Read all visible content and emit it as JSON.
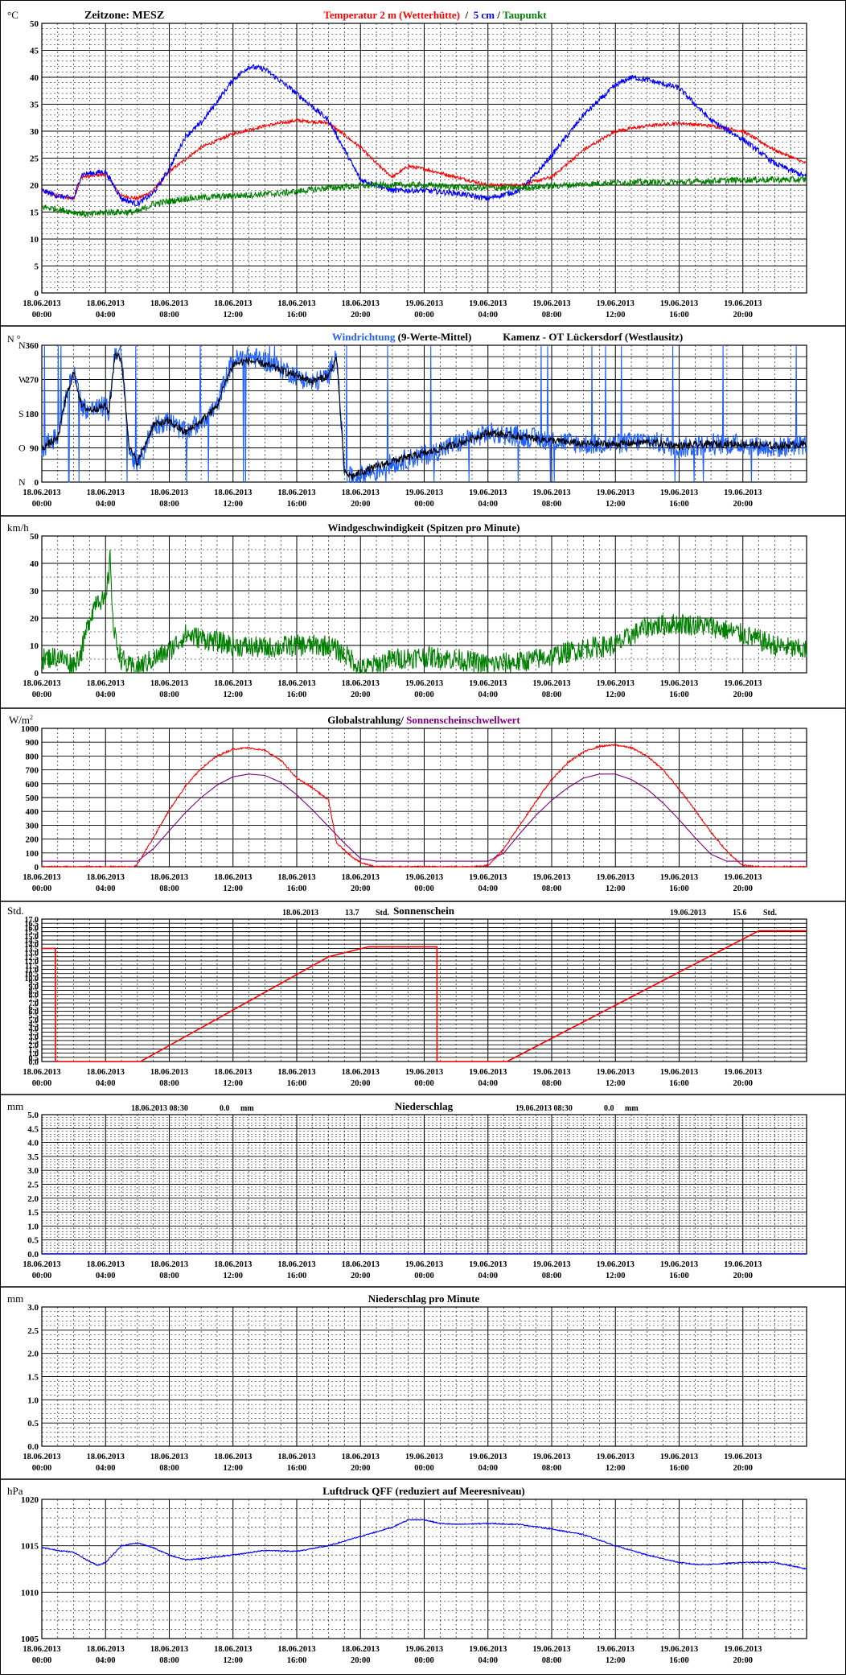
{
  "colors": {
    "red": "#ff0000",
    "blue": "#0000ff",
    "lightblue": "#2060ff",
    "green": "#008000",
    "black": "#000000",
    "purple": "#800080"
  },
  "x_ticks": [
    {
      "date": "18.06.2013",
      "time": "00:00"
    },
    {
      "date": "18.06.2013",
      "time": "04:00"
    },
    {
      "date": "18.06.2013",
      "time": "08:00"
    },
    {
      "date": "18.06.2013",
      "time": "12:00"
    },
    {
      "date": "18.06.2013",
      "time": "16:00"
    },
    {
      "date": "18.06.2013",
      "time": "20:00"
    },
    {
      "date": "19.06.2013",
      "time": "00:00"
    },
    {
      "date": "19.06.2013",
      "time": "04:00"
    },
    {
      "date": "19.06.2013",
      "time": "08:00"
    },
    {
      "date": "19.06.2013",
      "time": "12:00"
    },
    {
      "date": "19.06.2013",
      "time": "16:00"
    },
    {
      "date": "19.06.2013",
      "time": "20:00"
    }
  ],
  "chart_data": [
    {
      "id": "temp",
      "type": "line",
      "unit": "°C",
      "header_left": "Zeitzone: MESZ",
      "title_parts": [
        {
          "text": "Temperatur 2 m (Wetterhütte)",
          "color": "red"
        },
        {
          "text": "  /  ",
          "color": "black"
        },
        {
          "text": "5 cm",
          "color": "blue"
        },
        {
          "text": " / ",
          "color": "black"
        },
        {
          "text": "Taupunkt",
          "color": "green"
        }
      ],
      "ylim": [
        0,
        50
      ],
      "y_ticks": [
        0,
        5,
        10,
        15,
        20,
        25,
        30,
        35,
        40,
        45,
        50
      ],
      "x_range_hours": [
        0,
        48
      ],
      "series": [
        {
          "color": "red",
          "noise": 0.3,
          "x": [
            0,
            1,
            2,
            2.5,
            4,
            5,
            6,
            7,
            8,
            10,
            12,
            14,
            16,
            18,
            20,
            21,
            22,
            23,
            24,
            26,
            28,
            30,
            32,
            34,
            36,
            38,
            40,
            42,
            44,
            46,
            48
          ],
          "y": [
            19,
            18,
            17.5,
            21.5,
            22,
            18,
            17.5,
            19,
            22.5,
            27,
            29.5,
            31,
            32,
            31.5,
            27,
            24,
            21.5,
            23.5,
            23,
            21.5,
            20,
            20,
            21.5,
            26.5,
            30,
            31,
            31.5,
            31,
            30,
            26.5,
            24
          ]
        },
        {
          "color": "blue",
          "noise": 0.5,
          "x": [
            0,
            1,
            2,
            2.5,
            4,
            5,
            6,
            7,
            8,
            9,
            10,
            12,
            13,
            14,
            16,
            18,
            19,
            20,
            22,
            24,
            26,
            28,
            30,
            31,
            32,
            34,
            36,
            37,
            38,
            40,
            42,
            44,
            46,
            48
          ],
          "y": [
            19,
            18,
            17.5,
            22,
            22.5,
            17.5,
            16.5,
            18.5,
            23,
            29,
            31.5,
            39.5,
            42,
            41.5,
            37,
            32,
            26.5,
            21,
            19,
            19,
            18.5,
            17.5,
            19,
            22,
            25.5,
            33,
            38.5,
            40,
            39.5,
            38,
            32,
            28.5,
            24,
            21.5
          ]
        },
        {
          "color": "green",
          "noise": 0.6,
          "x": [
            0,
            2,
            3,
            4,
            6,
            7,
            9,
            12,
            15,
            18,
            21,
            24,
            27,
            30,
            33,
            36,
            40,
            44,
            48
          ],
          "y": [
            16,
            15,
            14.5,
            15,
            15,
            16.5,
            17.5,
            18,
            18.5,
            19.5,
            20,
            20,
            19.5,
            19.5,
            20,
            20.5,
            20.5,
            21,
            21
          ]
        }
      ]
    },
    {
      "id": "wind_dir",
      "type": "line",
      "unit": "°",
      "axis_labels_left": [
        {
          "text": "N",
          "value": 0
        },
        {
          "text": "O",
          "value": 90
        },
        {
          "text": "S",
          "value": 180
        },
        {
          "text": "W",
          "value": 270
        },
        {
          "text": "N",
          "value": 360
        }
      ],
      "title_parts": [
        {
          "text": "Windrichtung",
          "color": "lightblue"
        },
        {
          "text": " (9-Werte-Mittel)",
          "color": "black"
        },
        {
          "text": "            Kamenz - OT Lückersdorf (Westlausitz)",
          "color": "black"
        }
      ],
      "ylim": [
        0,
        360
      ],
      "y_ticks": [
        0,
        30,
        60,
        90,
        120,
        150,
        180,
        210,
        240,
        270,
        300,
        330,
        360
      ],
      "x_range_hours": [
        0,
        48
      ],
      "series": [
        {
          "color": "lightblue",
          "noise": 28,
          "spikes": true,
          "x": [
            0,
            1,
            1.5,
            2,
            2.5,
            3,
            4,
            4.2,
            4.6,
            5,
            5.5,
            6,
            7,
            8,
            9,
            10,
            11,
            11.5,
            12,
            13,
            14,
            15,
            16,
            17,
            18,
            18.5,
            19,
            19.5,
            20,
            21,
            22,
            24,
            26,
            28,
            30,
            32,
            34,
            36,
            38,
            40,
            42,
            44,
            46,
            48
          ],
          "y": [
            90,
            120,
            220,
            300,
            200,
            190,
            200,
            180,
            350,
            330,
            80,
            40,
            150,
            160,
            130,
            160,
            200,
            270,
            320,
            330,
            320,
            300,
            280,
            260,
            280,
            340,
            20,
            10,
            20,
            30,
            50,
            70,
            100,
            130,
            120,
            110,
            100,
            100,
            110,
            90,
            100,
            100,
            90,
            100
          ]
        },
        {
          "color": "black",
          "noise": 10,
          "x": [
            0,
            1,
            1.5,
            2,
            2.5,
            3,
            4,
            4.2,
            4.6,
            5,
            5.5,
            6,
            7,
            8,
            9,
            10,
            11,
            11.5,
            12,
            13,
            14,
            15,
            16,
            17,
            18,
            18.5,
            19,
            19.5,
            20,
            21,
            22,
            24,
            26,
            28,
            30,
            32,
            34,
            36,
            38,
            40,
            42,
            44,
            46,
            48
          ],
          "y": [
            90,
            115,
            220,
            290,
            200,
            190,
            200,
            180,
            340,
            320,
            90,
            50,
            150,
            160,
            130,
            160,
            200,
            260,
            310,
            320,
            310,
            295,
            280,
            265,
            280,
            330,
            25,
            15,
            25,
            40,
            55,
            75,
            100,
            130,
            120,
            110,
            100,
            100,
            105,
            95,
            100,
            100,
            95,
            100
          ]
        }
      ]
    },
    {
      "id": "wind_speed",
      "type": "line",
      "unit": "km/h",
      "title_parts": [
        {
          "text": "Windgeschwindigkeit (Spitzen pro Minute)",
          "color": "black"
        }
      ],
      "ylim": [
        0,
        50
      ],
      "y_ticks": [
        0,
        10,
        20,
        30,
        40,
        50
      ],
      "x_range_hours": [
        0,
        48
      ],
      "series": [
        {
          "color": "green",
          "noise": 4,
          "x": [
            0,
            1,
            2,
            2.5,
            3,
            3.5,
            4,
            4.3,
            4.5,
            5,
            5.5,
            6,
            8,
            9,
            12,
            14,
            16,
            18,
            19.5,
            20,
            22,
            24,
            26,
            28,
            30,
            32,
            34,
            36,
            38,
            40,
            42,
            44,
            46,
            48
          ],
          "y": [
            5,
            6,
            3,
            8,
            20,
            28,
            25,
            42,
            15,
            5,
            2,
            2,
            8,
            14,
            10,
            9,
            10,
            10,
            5,
            1,
            5,
            6,
            5,
            3,
            4,
            6,
            9,
            10,
            17,
            18,
            17,
            14,
            10,
            8
          ]
        }
      ]
    },
    {
      "id": "radiation",
      "type": "line",
      "unit": "W/m²",
      "title_parts": [
        {
          "text": "Globalstrahlung/ ",
          "color": "black"
        },
        {
          "text": "Sonnenscheinschwellwert",
          "color": "purple"
        }
      ],
      "ylim": [
        0,
        1000
      ],
      "y_ticks": [
        0,
        100,
        200,
        300,
        400,
        500,
        600,
        700,
        800,
        900,
        1000
      ],
      "x_range_hours": [
        0,
        48
      ],
      "series": [
        {
          "color": "red",
          "noise": 6,
          "x": [
            0,
            5.8,
            6,
            7,
            8,
            9,
            10,
            11,
            12,
            13,
            14,
            15,
            16,
            17,
            18,
            18.5,
            19,
            19.5,
            20,
            21,
            22,
            24,
            27,
            28,
            29,
            30,
            31,
            32,
            33,
            34,
            35,
            36,
            37,
            38,
            39,
            40,
            41,
            42,
            43,
            44,
            45,
            46,
            48
          ],
          "y": [
            0,
            0,
            20,
            210,
            410,
            580,
            710,
            800,
            850,
            860,
            840,
            770,
            640,
            570,
            480,
            170,
            120,
            70,
            30,
            0,
            0,
            0,
            0,
            10,
            130,
            300,
            470,
            630,
            750,
            830,
            870,
            880,
            860,
            800,
            700,
            560,
            410,
            250,
            110,
            10,
            0,
            0,
            0
          ]
        },
        {
          "color": "purple",
          "noise": 0,
          "x": [
            0,
            5.8,
            6,
            7,
            8,
            9,
            10,
            11,
            12,
            13,
            14,
            15,
            16,
            17,
            18,
            19,
            20,
            21,
            22,
            24,
            28,
            29,
            30,
            31,
            32,
            33,
            34,
            35,
            36,
            37,
            38,
            39,
            40,
            41,
            42,
            43,
            44,
            46,
            48
          ],
          "y": [
            40,
            40,
            40,
            130,
            260,
            390,
            500,
            590,
            650,
            670,
            660,
            610,
            520,
            410,
            290,
            170,
            60,
            40,
            40,
            40,
            40,
            100,
            240,
            370,
            480,
            570,
            640,
            670,
            670,
            630,
            560,
            460,
            340,
            210,
            90,
            40,
            40,
            40,
            40
          ]
        }
      ]
    },
    {
      "id": "sunshine",
      "type": "line",
      "unit": "Std.",
      "title_parts": [
        {
          "text": "Sonnenschein",
          "color": "black"
        }
      ],
      "annotations": [
        {
          "date": "18.06.2013",
          "value": "13.7",
          "unit": "Std."
        },
        {
          "date": "19.06.2013",
          "value": "15.6",
          "unit": "Std."
        }
      ],
      "ylim": [
        0,
        17
      ],
      "y_ticks": [
        0,
        0.5,
        1,
        1.5,
        2,
        2.5,
        3,
        3.5,
        4,
        4.5,
        5,
        5.5,
        6,
        6.5,
        7,
        7.5,
        8,
        8.5,
        9,
        9.5,
        10,
        10.5,
        11,
        11.5,
        12,
        12.5,
        13,
        13.5,
        14,
        14.5,
        15,
        15.5,
        16,
        16.5,
        17
      ],
      "x_range_hours": [
        0,
        48
      ],
      "series": [
        {
          "color": "red",
          "noise": 0,
          "x": [
            0,
            0.85,
            0.86,
            6,
            6.2,
            18,
            20.5,
            24.8,
            24.81,
            29,
            29.2,
            45,
            48
          ],
          "y": [
            13.5,
            13.5,
            0,
            0,
            0,
            12.5,
            13.7,
            13.7,
            0,
            0,
            0,
            15.6,
            15.6
          ]
        }
      ]
    },
    {
      "id": "precip",
      "type": "line",
      "unit": "mm",
      "title_parts": [
        {
          "text": "Niederschlag",
          "color": "black"
        }
      ],
      "annotations": [
        {
          "date": "18.06.2013 08:30",
          "value": "0.0",
          "unit": "mm"
        },
        {
          "date": "19.06.2013 08:30",
          "value": "0.0",
          "unit": "mm"
        }
      ],
      "ylim": [
        0,
        5
      ],
      "y_ticks": [
        0,
        0.5,
        1,
        1.5,
        2,
        2.5,
        3,
        3.5,
        4,
        4.5,
        5
      ],
      "x_range_hours": [
        0,
        48
      ],
      "series": [
        {
          "color": "blue",
          "noise": 0,
          "x": [
            0,
            48
          ],
          "y": [
            0,
            0
          ]
        }
      ]
    },
    {
      "id": "precip_min",
      "type": "line",
      "unit": "mm",
      "title_parts": [
        {
          "text": "Niederschlag pro Minute",
          "color": "black"
        }
      ],
      "ylim": [
        0,
        3
      ],
      "y_ticks": [
        0,
        0.5,
        1,
        1.5,
        2,
        2.5,
        3
      ],
      "x_range_hours": [
        0,
        48
      ],
      "series": []
    },
    {
      "id": "pressure",
      "type": "line",
      "unit": "hPa",
      "title_parts": [
        {
          "text": "Luftdruck QFF (reduziert auf Meeresniveau)",
          "color": "black"
        }
      ],
      "ylim": [
        1005,
        1020
      ],
      "y_ticks": [
        1005,
        1010,
        1015,
        1020
      ],
      "x_range_hours": [
        0,
        48
      ],
      "series": [
        {
          "color": "blue",
          "noise": 0.06,
          "x": [
            0,
            1,
            2,
            3,
            3.5,
            4,
            5,
            6,
            7,
            8,
            9,
            10,
            12,
            14,
            16,
            18,
            20,
            22,
            23,
            24,
            25,
            26,
            28,
            30,
            32,
            34,
            36,
            38,
            40,
            41,
            42,
            44,
            46,
            48
          ],
          "y": [
            1014.8,
            1014.5,
            1014.3,
            1013.3,
            1012.9,
            1013.2,
            1015,
            1015.3,
            1014.8,
            1014,
            1013.5,
            1013.6,
            1014,
            1014.5,
            1014.4,
            1015,
            1016,
            1017,
            1017.8,
            1017.8,
            1017.4,
            1017.3,
            1017.4,
            1017.3,
            1016.8,
            1016.2,
            1015,
            1014,
            1013.2,
            1013,
            1013,
            1013.2,
            1013.2,
            1012.5
          ]
        }
      ]
    }
  ]
}
